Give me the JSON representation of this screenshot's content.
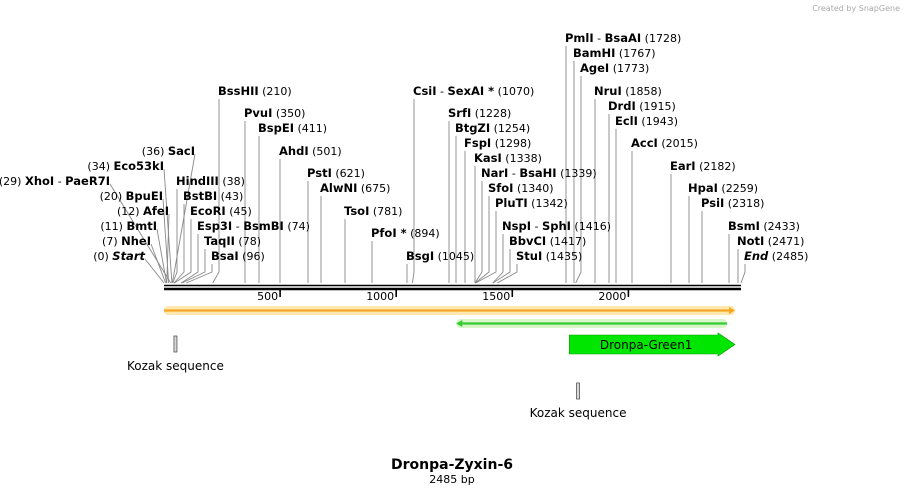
{
  "credit": "Created by SnapGene",
  "plasmid": {
    "name": "Dronpa-Zyxin-6",
    "size_label": "2485 bp",
    "length": 2485
  },
  "ticks": [
    {
      "value": 500,
      "label": "500"
    },
    {
      "value": 1000,
      "label": "1000"
    },
    {
      "value": 1500,
      "label": "1500"
    },
    {
      "value": 2000,
      "label": "2000"
    }
  ],
  "sites": [
    {
      "id": "start",
      "parts": [
        {
          "t": "Start",
          "italic": true
        }
      ],
      "pos_label": "(0)",
      "bp": 0
    },
    {
      "id": "nhei",
      "parts": [
        {
          "t": "NheI"
        }
      ],
      "pos_label": "(7)",
      "bp": 7
    },
    {
      "id": "bmti",
      "parts": [
        {
          "t": "BmtI"
        }
      ],
      "pos_label": "(11)",
      "bp": 11
    },
    {
      "id": "afei",
      "parts": [
        {
          "t": "AfeI"
        }
      ],
      "pos_label": "(12)",
      "bp": 12
    },
    {
      "id": "bpuei",
      "parts": [
        {
          "t": "BpuEI"
        }
      ],
      "pos_label": "(20)",
      "bp": 20
    },
    {
      "id": "xhoi",
      "parts": [
        {
          "t": "XhoI"
        },
        {
          "t": "PaeR7I"
        }
      ],
      "pos_label": "(29)",
      "bp": 29
    },
    {
      "id": "eco53ki",
      "parts": [
        {
          "t": "Eco53kI"
        }
      ],
      "pos_label": "(34)",
      "bp": 34
    },
    {
      "id": "saci",
      "parts": [
        {
          "t": "SacI"
        }
      ],
      "pos_label": "(36)",
      "bp": 36
    },
    {
      "id": "hindiii",
      "parts": [
        {
          "t": "HindIII"
        }
      ],
      "pos_label": "(38)",
      "bp": 38
    },
    {
      "id": "bstbi",
      "parts": [
        {
          "t": "BstBI"
        }
      ],
      "pos_label": "(43)",
      "bp": 43
    },
    {
      "id": "ecori",
      "parts": [
        {
          "t": "EcoRI"
        }
      ],
      "pos_label": "(45)",
      "bp": 45
    },
    {
      "id": "esp3i",
      "parts": [
        {
          "t": "Esp3I"
        },
        {
          "t": "BsmBI"
        }
      ],
      "pos_label": "(74)",
      "bp": 74
    },
    {
      "id": "taqii",
      "parts": [
        {
          "t": "TaqII"
        }
      ],
      "pos_label": "(78)",
      "bp": 78
    },
    {
      "id": "bsai",
      "parts": [
        {
          "t": "BsaI"
        }
      ],
      "pos_label": "(96)",
      "bp": 96
    },
    {
      "id": "bsshii",
      "parts": [
        {
          "t": "BssHII"
        }
      ],
      "pos_label": "(210)",
      "bp": 210
    },
    {
      "id": "pvui",
      "parts": [
        {
          "t": "PvuI"
        }
      ],
      "pos_label": "(350)",
      "bp": 350
    },
    {
      "id": "bspei",
      "parts": [
        {
          "t": "BspEI"
        }
      ],
      "pos_label": "(411)",
      "bp": 411
    },
    {
      "id": "ahdi",
      "parts": [
        {
          "t": "AhdI"
        }
      ],
      "pos_label": "(501)",
      "bp": 501
    },
    {
      "id": "psti",
      "parts": [
        {
          "t": "PstI"
        }
      ],
      "pos_label": "(621)",
      "bp": 621
    },
    {
      "id": "alwni",
      "parts": [
        {
          "t": "AlwNI"
        }
      ],
      "pos_label": "(675)",
      "bp": 675
    },
    {
      "id": "tsoi",
      "parts": [
        {
          "t": "TsoI"
        }
      ],
      "pos_label": "(781)",
      "bp": 781
    },
    {
      "id": "pfoi",
      "parts": [
        {
          "t": "PfoI *"
        }
      ],
      "pos_label": "(894)",
      "bp": 894
    },
    {
      "id": "bsgi",
      "parts": [
        {
          "t": "BsgI"
        }
      ],
      "pos_label": "(1045)",
      "bp": 1045
    },
    {
      "id": "csii",
      "parts": [
        {
          "t": "CsiI"
        },
        {
          "t": "SexAI *"
        }
      ],
      "pos_label": "(1070)",
      "bp": 1070
    },
    {
      "id": "srfi",
      "parts": [
        {
          "t": "SrfI"
        }
      ],
      "pos_label": "(1228)",
      "bp": 1228
    },
    {
      "id": "btgzi",
      "parts": [
        {
          "t": "BtgZI"
        }
      ],
      "pos_label": "(1254)",
      "bp": 1254
    },
    {
      "id": "fspi",
      "parts": [
        {
          "t": "FspI"
        }
      ],
      "pos_label": "(1298)",
      "bp": 1298
    },
    {
      "id": "kasi",
      "parts": [
        {
          "t": "KasI"
        }
      ],
      "pos_label": "(1338)",
      "bp": 1338
    },
    {
      "id": "nari",
      "parts": [
        {
          "t": "NarI"
        },
        {
          "t": "BsaHI"
        }
      ],
      "pos_label": "(1339)",
      "bp": 1339
    },
    {
      "id": "sfoi",
      "parts": [
        {
          "t": "SfoI"
        }
      ],
      "pos_label": "(1340)",
      "bp": 1340
    },
    {
      "id": "pluti",
      "parts": [
        {
          "t": "PluTI"
        }
      ],
      "pos_label": "(1342)",
      "bp": 1342
    },
    {
      "id": "nspi",
      "parts": [
        {
          "t": "NspI"
        },
        {
          "t": "SphI"
        }
      ],
      "pos_label": "(1416)",
      "bp": 1416
    },
    {
      "id": "bbvci",
      "parts": [
        {
          "t": "BbvCI"
        }
      ],
      "pos_label": "(1417)",
      "bp": 1417
    },
    {
      "id": "stui",
      "parts": [
        {
          "t": "StuI"
        }
      ],
      "pos_label": "(1435)",
      "bp": 1435
    },
    {
      "id": "pmli",
      "parts": [
        {
          "t": "PmlI"
        },
        {
          "t": "BsaAI"
        }
      ],
      "pos_label": "(1728)",
      "bp": 1728
    },
    {
      "id": "bamhi",
      "parts": [
        {
          "t": "BamHI"
        }
      ],
      "pos_label": "(1767)",
      "bp": 1767
    },
    {
      "id": "agei",
      "parts": [
        {
          "t": "AgeI"
        }
      ],
      "pos_label": "(1773)",
      "bp": 1773
    },
    {
      "id": "nrui",
      "parts": [
        {
          "t": "NruI"
        }
      ],
      "pos_label": "(1858)",
      "bp": 1858
    },
    {
      "id": "drdi",
      "parts": [
        {
          "t": "DrdI"
        }
      ],
      "pos_label": "(1915)",
      "bp": 1915
    },
    {
      "id": "ecli",
      "parts": [
        {
          "t": "EclI"
        }
      ],
      "pos_label": "(1943)",
      "bp": 1943
    },
    {
      "id": "acci",
      "parts": [
        {
          "t": "AccI"
        }
      ],
      "pos_label": "(2015)",
      "bp": 2015
    },
    {
      "id": "eari",
      "parts": [
        {
          "t": "EarI"
        }
      ],
      "pos_label": "(2182)",
      "bp": 2182
    },
    {
      "id": "hpai",
      "parts": [
        {
          "t": "HpaI"
        }
      ],
      "pos_label": "(2259)",
      "bp": 2259
    },
    {
      "id": "psii",
      "parts": [
        {
          "t": "PsiI"
        }
      ],
      "pos_label": "(2318)",
      "bp": 2318
    },
    {
      "id": "bsmi",
      "parts": [
        {
          "t": "BsmI"
        }
      ],
      "pos_label": "(2433)",
      "bp": 2433
    },
    {
      "id": "noti",
      "parts": [
        {
          "t": "NotI"
        }
      ],
      "pos_label": "(2471)",
      "bp": 2471
    },
    {
      "id": "end",
      "parts": [
        {
          "t": "End",
          "italic": true
        }
      ],
      "pos_label": "(2485)",
      "bp": 2485
    }
  ],
  "features": {
    "orange_bar": {
      "color": "#f5a623",
      "light": "#ffe8b0",
      "start_bp": 0,
      "end_bp": 2485,
      "direction": "forward"
    },
    "green_bar": {
      "color": "#33cc33",
      "light": "#d8f5c8",
      "start_bp": 1250,
      "end_bp": 2485,
      "direction": "reverse"
    },
    "dronpa": {
      "label": "Dronpa-Green1",
      "color": "#00e600",
      "start_bp": 1780,
      "end_bp": 2485,
      "direction": "forward"
    },
    "kozak1": {
      "label": "Kozak sequence",
      "bp": 45
    },
    "kozak2": {
      "label": "Kozak sequence",
      "bp": 1779
    }
  }
}
